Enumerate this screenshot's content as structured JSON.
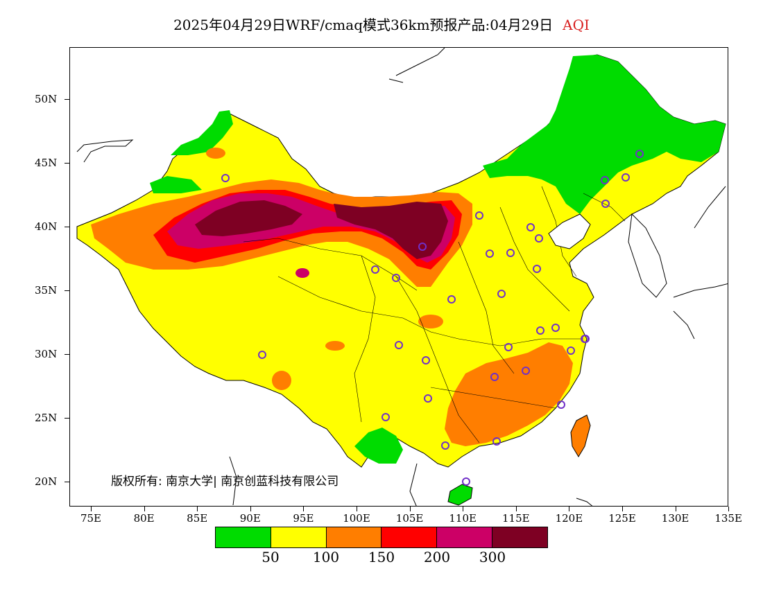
{
  "title": {
    "main": "2025年04月29日WRF/cmaq模式36km预报产品:04月29日",
    "variable": "AQI"
  },
  "axes": {
    "y_labels": [
      "50N",
      "45N",
      "40N",
      "35N",
      "30N",
      "25N",
      "20N"
    ],
    "x_labels": [
      "75E",
      "80E",
      "85E",
      "90E",
      "95E",
      "100E",
      "105E",
      "110E",
      "115E",
      "120E",
      "125E",
      "130E",
      "135E"
    ]
  },
  "legend": {
    "colors": [
      "#00dc00",
      "#ffff00",
      "#ff7e00",
      "#ff0000",
      "#cc0066",
      "#7e0023"
    ],
    "labels": [
      "50",
      "100",
      "150",
      "200",
      "300"
    ]
  },
  "copyright": "版权所有: 南京大学| 南京创蓝科技有限公司"
}
